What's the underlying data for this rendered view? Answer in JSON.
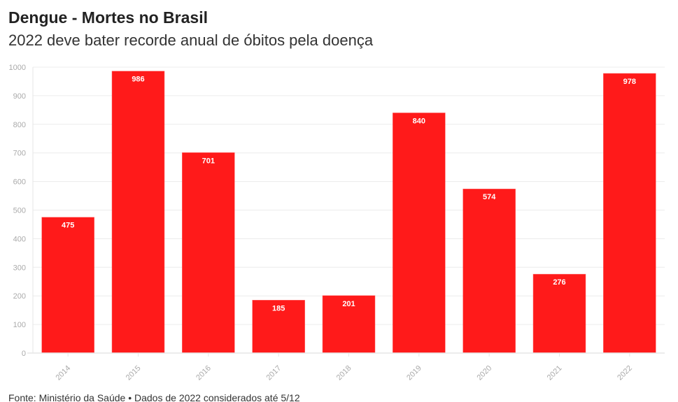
{
  "title": "Dengue - Mortes no Brasil",
  "subtitle": "2022 deve bater recorde anual de óbitos pela doença",
  "footer": "Fonte: Ministério da Saúde • Dados de 2022 considerados até 5/12",
  "chart_data": {
    "type": "bar",
    "title": "Dengue - Mortes no Brasil",
    "subtitle": "2022 deve bater recorde anual de óbitos pela doença",
    "categories": [
      "2014",
      "2015",
      "2016",
      "2017",
      "2018",
      "2019",
      "2020",
      "2021",
      "2022"
    ],
    "values": [
      475,
      986,
      701,
      185,
      201,
      840,
      574,
      276,
      978
    ],
    "ylim": [
      0,
      1000
    ],
    "yticks": [
      0,
      100,
      200,
      300,
      400,
      500,
      600,
      700,
      800,
      900,
      1000
    ],
    "grid": true,
    "bar_color": "#ff1a1a",
    "data_labels": true
  }
}
